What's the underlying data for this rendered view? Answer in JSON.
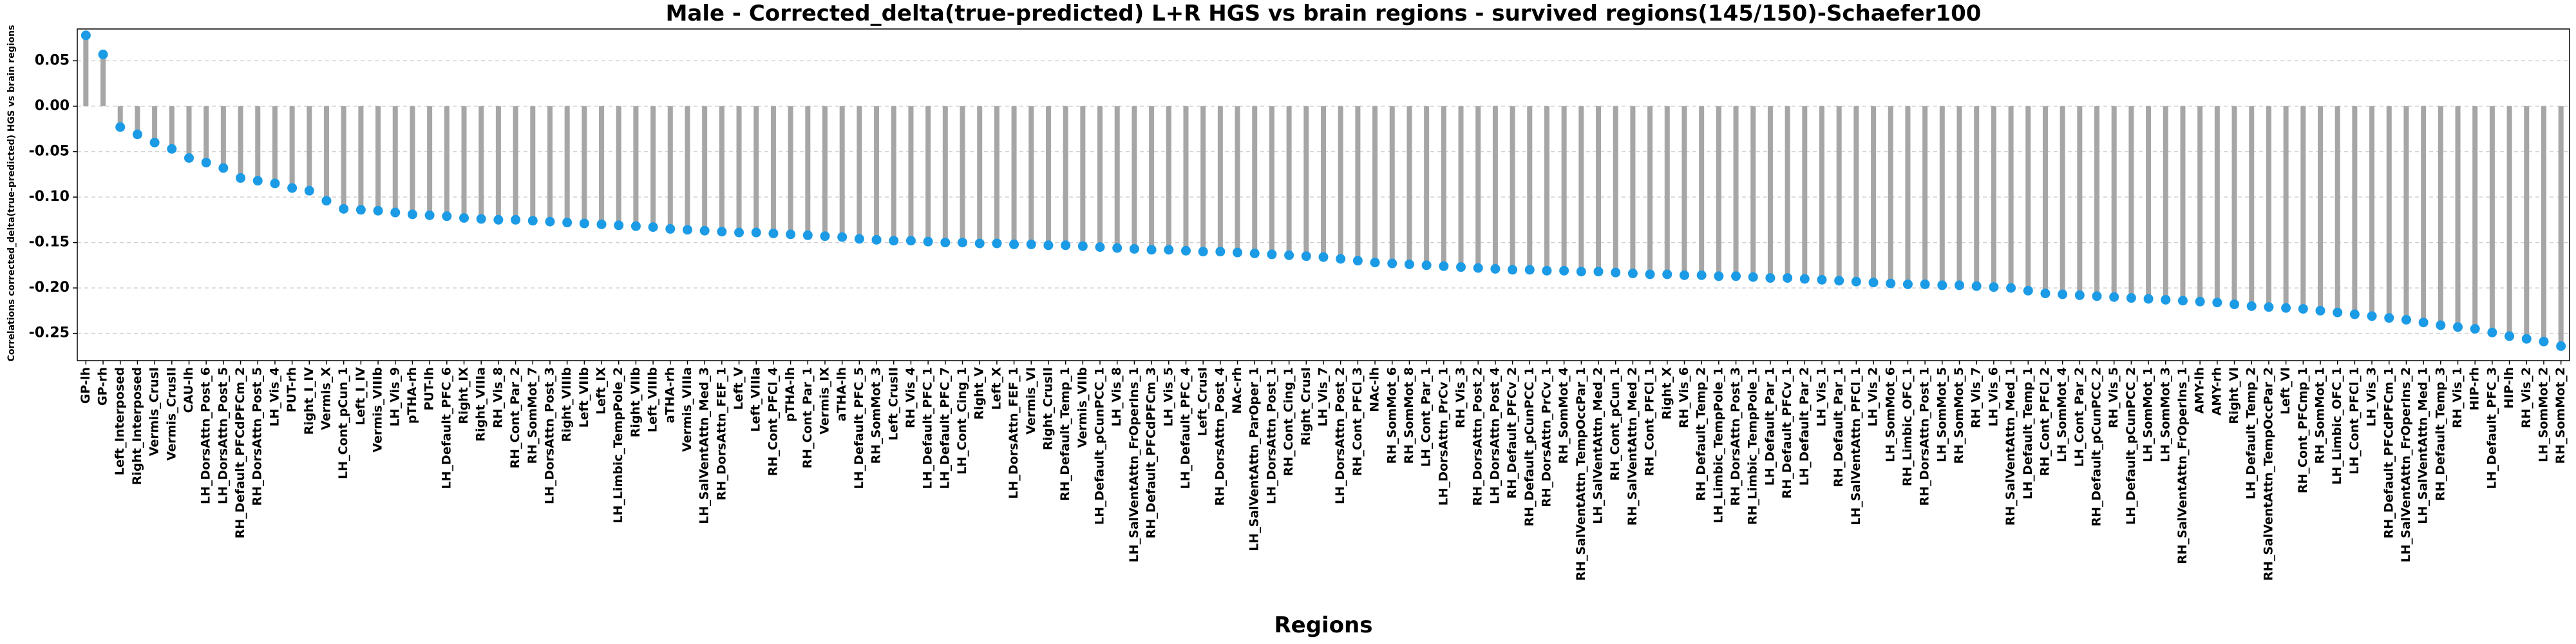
{
  "chart_data": {
    "type": "lollipop",
    "title": "Male - Corrected_delta(true-predicted) L+R HGS vs brain regions - survived regions(145/150)-Schaefer100",
    "x_label": "Regions",
    "y_label": "Correlations corrected_delta(true-predicted) HGS vs brain regions",
    "categories": [
      "GP-lh",
      "GP-rh",
      "Left_Interposed",
      "Right_Interposed",
      "Vermis_CrusI",
      "Vermis_CrusII",
      "CAU-lh",
      "LH_DorsAttn_Post_6",
      "LH_DorsAttn_Post_5",
      "RH_Default_PFCdPFCm_2",
      "RH_DorsAttn_Post_5",
      "LH_Vis_4",
      "PUT-rh",
      "Right_I_IV",
      "Vermis_X",
      "LH_Cont_pCun_1",
      "Left_I_IV",
      "Vermis_VIIIb",
      "LH_Vis_9",
      "pTHA-rh",
      "PUT-lh",
      "LH_Default_PFC_6",
      "Right_IX",
      "Right_VIIIa",
      "RH_Vis_8",
      "RH_Cont_Par_2",
      "RH_SomMot_7",
      "LH_DorsAttn_Post_3",
      "Right_VIIIb",
      "Left_VIIb",
      "Left_IX",
      "LH_Limbic_TempPole_2",
      "Right_VIIb",
      "Left_VIIIb",
      "aTHA-rh",
      "Vermis_VIIIa",
      "LH_SalVentAttn_Med_3",
      "RH_DorsAttn_FEF_1",
      "Left_V",
      "Left_VIIIa",
      "RH_Cont_PFCl_4",
      "pTHA-lh",
      "RH_Cont_Par_1",
      "Vermis_IX",
      "aTHA-lh",
      "LH_Default_PFC_5",
      "RH_SomMot_3",
      "Left_CrusII",
      "RH_Vis_4",
      "LH_Default_PFC_1",
      "LH_Default_PFC_7",
      "LH_Cont_Cing_1",
      "Right_V",
      "Left_X",
      "LH_DorsAttn_FEF_1",
      "Vermis_VI",
      "Right_CrusII",
      "RH_Default_Temp_1",
      "Vermis_VIIb",
      "LH_Default_pCunPCC_1",
      "LH_Vis_8",
      "LH_SalVentAttn_FrOperIns_1",
      "RH_Default_PFCdPFCm_3",
      "LH_Vis_5",
      "LH_Default_PFC_4",
      "Left_CrusI",
      "RH_DorsAttn_Post_4",
      "NAc-rh",
      "LH_SalVentAttn_ParOper_1",
      "LH_DorsAttn_Post_1",
      "RH_Cont_Cing_1",
      "Right_CrusI",
      "LH_Vis_7",
      "LH_DorsAttn_Post_2",
      "RH_Cont_PFCl_3",
      "NAc-lh",
      "RH_SomMot_6",
      "RH_SomMot_8",
      "LH_Cont_Par_1",
      "LH_DorsAttn_PrCv_1",
      "RH_Vis_3",
      "RH_DorsAttn_Post_2",
      "LH_DorsAttn_Post_4",
      "RH_Default_PFCv_2",
      "RH_Default_pCunPCC_1",
      "RH_DorsAttn_PrCv_1",
      "RH_SomMot_4",
      "RH_SalVentAttn_TempOccPar_1",
      "LH_SalVentAttn_Med_2",
      "RH_Cont_pCun_1",
      "RH_SalVentAttn_Med_2",
      "RH_Cont_PFCl_1",
      "Right_X",
      "RH_Vis_6",
      "RH_Default_Temp_2",
      "LH_Limbic_TempPole_1",
      "RH_DorsAttn_Post_3",
      "RH_Limbic_TempPole_1",
      "LH_Default_Par_1",
      "RH_Default_PFCv_1",
      "LH_Default_Par_2",
      "LH_Vis_1",
      "RH_Default_Par_1",
      "LH_SalVentAttn_PFCl_1",
      "LH_Vis_2",
      "LH_SomMot_6",
      "RH_Limbic_OFC_1",
      "RH_DorsAttn_Post_1",
      "LH_SomMot_5",
      "RH_SomMot_5",
      "RH_Vis_7",
      "LH_Vis_6",
      "RH_SalVentAttn_Med_1",
      "LH_Default_Temp_1",
      "RH_Cont_PFCl_2",
      "LH_SomMot_4",
      "LH_Cont_Par_2",
      "RH_Default_pCunPCC_2",
      "RH_Vis_5",
      "LH_Default_pCunPCC_2",
      "LH_SomMot_1",
      "LH_SomMot_3",
      "RH_SalVentAttn_FrOperIns_1",
      "AMY-lh",
      "AMY-rh",
      "Right_VI",
      "LH_Default_Temp_2",
      "RH_SalVentAttn_TempOccPar_2",
      "Left_VI",
      "RH_Cont_PFCmp_1",
      "RH_SomMot_1",
      "LH_Limbic_OFC_1",
      "LH_Cont_PFCl_1",
      "LH_Vis_3",
      "RH_Default_PFCdPFCm_1",
      "LH_SalVentAttn_FrOperIns_2",
      "LH_SalVentAttn_Med_1",
      "RH_Default_Temp_3",
      "RH_Vis_1",
      "HIP-rh",
      "LH_Default_PFC_3",
      "HIP-lh",
      "RH_Vis_2",
      "LH_SomMot_2",
      "RH_SomMot_2"
    ],
    "values": [
      0.078,
      0.057,
      -0.023,
      -0.031,
      -0.04,
      -0.047,
      -0.057,
      -0.062,
      -0.068,
      -0.079,
      -0.082,
      -0.085,
      -0.09,
      -0.093,
      -0.104,
      -0.113,
      -0.114,
      -0.115,
      -0.117,
      -0.119,
      -0.12,
      -0.121,
      -0.123,
      -0.124,
      -0.125,
      -0.125,
      -0.126,
      -0.127,
      -0.128,
      -0.129,
      -0.13,
      -0.131,
      -0.132,
      -0.133,
      -0.135,
      -0.136,
      -0.137,
      -0.138,
      -0.139,
      -0.139,
      -0.14,
      -0.141,
      -0.142,
      -0.143,
      -0.144,
      -0.146,
      -0.147,
      -0.148,
      -0.148,
      -0.149,
      -0.15,
      -0.15,
      -0.151,
      -0.151,
      -0.152,
      -0.152,
      -0.153,
      -0.153,
      -0.154,
      -0.155,
      -0.156,
      -0.157,
      -0.158,
      -0.158,
      -0.159,
      -0.16,
      -0.16,
      -0.161,
      -0.162,
      -0.163,
      -0.164,
      -0.165,
      -0.166,
      -0.168,
      -0.17,
      -0.172,
      -0.173,
      -0.174,
      -0.175,
      -0.176,
      -0.177,
      -0.178,
      -0.179,
      -0.18,
      -0.18,
      -0.181,
      -0.181,
      -0.182,
      -0.182,
      -0.183,
      -0.184,
      -0.185,
      -0.185,
      -0.186,
      -0.186,
      -0.187,
      -0.187,
      -0.188,
      -0.189,
      -0.189,
      -0.19,
      -0.191,
      -0.192,
      -0.193,
      -0.194,
      -0.195,
      -0.196,
      -0.196,
      -0.197,
      -0.197,
      -0.198,
      -0.199,
      -0.2,
      -0.203,
      -0.206,
      -0.207,
      -0.208,
      -0.209,
      -0.21,
      -0.211,
      -0.212,
      -0.213,
      -0.214,
      -0.215,
      -0.216,
      -0.218,
      -0.22,
      -0.221,
      -0.222,
      -0.223,
      -0.225,
      -0.227,
      -0.229,
      -0.231,
      -0.233,
      -0.235,
      -0.238,
      -0.241,
      -0.243,
      -0.245,
      -0.249,
      -0.253,
      -0.256,
      -0.259,
      -0.264
    ],
    "color": "#1b9be6",
    "stem_color": "#a6a6a6",
    "ylim": [
      -0.28,
      0.085
    ],
    "yticks": [
      0.05,
      {
        "value": 0,
        "label": "0.00"
      },
      -0.05,
      {
        "value": -0.1,
        "label": "-0.10"
      },
      -0.15,
      {
        "value": -0.2,
        "label": "-0.20"
      },
      -0.25
    ],
    "grid": true
  }
}
